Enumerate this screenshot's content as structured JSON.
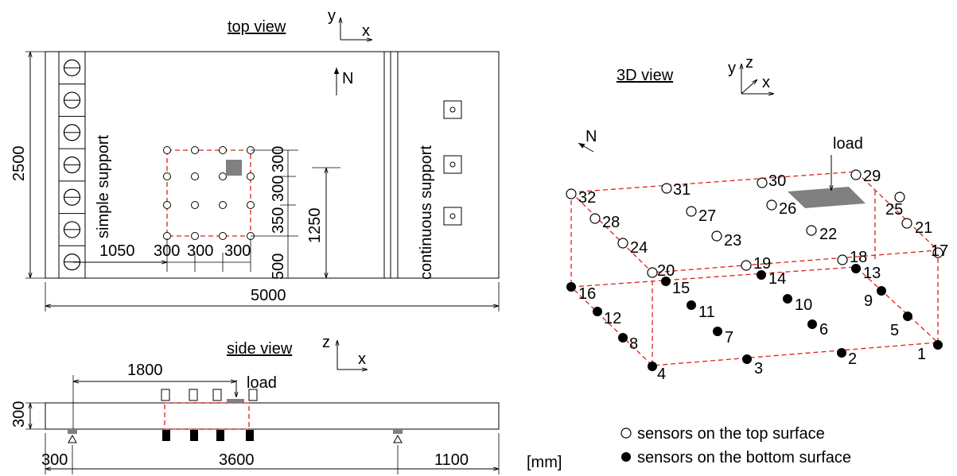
{
  "top_view": {
    "title": "top view",
    "axis_x": "x",
    "axis_y": "y",
    "north": "N",
    "simple_support": "simple support",
    "continuous_support": "continuous support",
    "dim_width": "2500",
    "dim_length": "5000",
    "dim_1250": "1250",
    "dim_1050": "1050",
    "dims_grid_x": [
      "300",
      "300",
      "300"
    ],
    "dims_grid_y": [
      "300",
      "300",
      "350",
      "500"
    ]
  },
  "side_view": {
    "title": "side view",
    "axis_x": "x",
    "axis_z": "z",
    "load": "load",
    "dim_1800": "1800",
    "dim_300_height": "300",
    "dims_span": [
      "300",
      "3600",
      "1100"
    ],
    "unit": "[mm]"
  },
  "view_3d": {
    "title": "3D view",
    "axis_x": "x",
    "axis_y": "y",
    "axis_z": "z",
    "north": "N",
    "load": "load",
    "top_sensor_labels": [
      "17",
      "18",
      "19",
      "20",
      "21",
      "22",
      "23",
      "24",
      "25",
      "26",
      "27",
      "28",
      "29",
      "30",
      "31",
      "32"
    ],
    "bottom_sensor_labels": [
      "1",
      "2",
      "3",
      "4",
      "5",
      "6",
      "7",
      "8",
      "9",
      "10",
      "11",
      "12",
      "13",
      "14",
      "15",
      "16"
    ]
  },
  "legend": {
    "top_surface": "sensors on the top surface",
    "bottom_surface": "sensors on the bottom surface"
  },
  "colors": {
    "line": "#000000",
    "dashed_frame": "#e0201b",
    "load_patch": "#808080",
    "bottom_sensor": "#000000",
    "top_sensor_fill": "#ffffff"
  }
}
